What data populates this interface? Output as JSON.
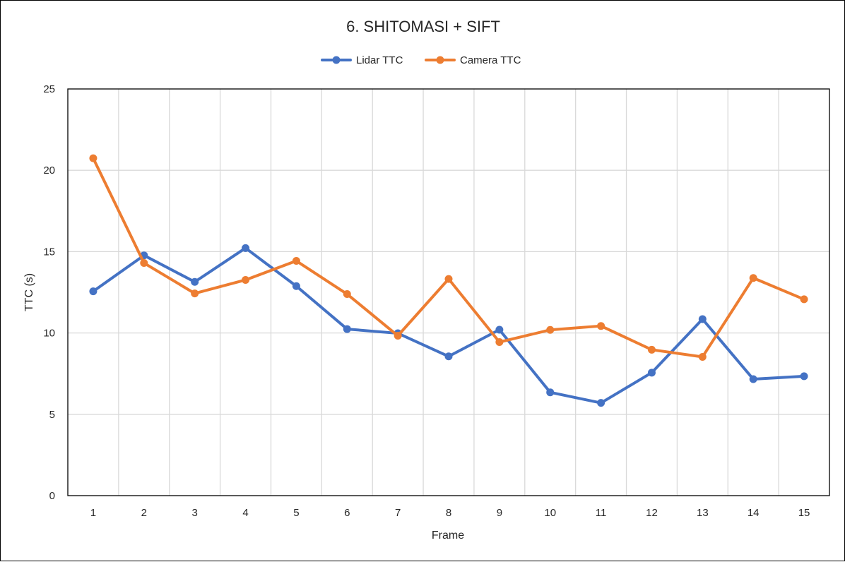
{
  "chart_data": {
    "type": "line",
    "title": "6. SHITOMASI + SIFT",
    "xlabel": "Frame",
    "ylabel": "TTC (s)",
    "x": [
      "1",
      "2",
      "3",
      "4",
      "5",
      "6",
      "7",
      "8",
      "9",
      "10",
      "11",
      "12",
      "13",
      "14",
      "15"
    ],
    "yticks": [
      "0",
      "5",
      "10",
      "15",
      "20",
      "25"
    ],
    "ylim": [
      0,
      25
    ],
    "grid": true,
    "legend_position": "top-center",
    "series": [
      {
        "name": "Lidar TTC",
        "color": "#4472C4",
        "values": [
          12.56,
          14.77,
          13.14,
          15.22,
          12.88,
          10.24,
          9.98,
          8.56,
          10.2,
          6.35,
          5.7,
          7.56,
          10.85,
          7.16,
          7.34
        ]
      },
      {
        "name": "Camera TTC",
        "color": "#ED7D31",
        "values": [
          20.74,
          14.3,
          12.43,
          13.26,
          14.43,
          12.39,
          9.83,
          13.32,
          9.44,
          10.19,
          10.43,
          8.97,
          8.53,
          13.38,
          12.07
        ]
      }
    ]
  }
}
